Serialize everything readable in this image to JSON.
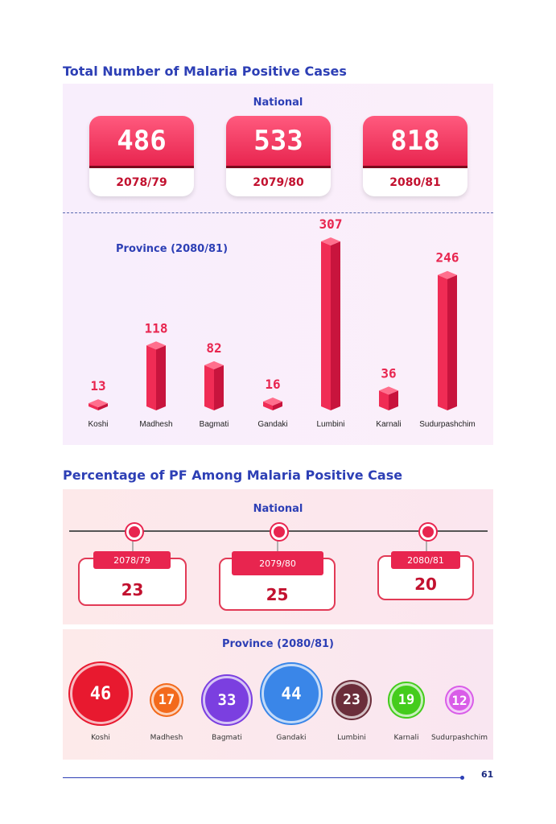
{
  "section1": {
    "title": "Total Number of Malaria Positive Cases",
    "national_label": "National",
    "national": [
      {
        "value": "486",
        "year": "2078/79"
      },
      {
        "value": "533",
        "year": "2079/80"
      },
      {
        "value": "818",
        "year": "2080/81"
      }
    ],
    "province_title": "Province (2080/81)"
  },
  "section2": {
    "title": "Percentage of PF Among Malaria Positive Case",
    "national_label": "National",
    "national": [
      {
        "value": "23",
        "year": "2078/79"
      },
      {
        "value": "25",
        "year": "2079/80"
      },
      {
        "value": "20",
        "year": "2080/81"
      }
    ],
    "province_title": "Province (2080/81)"
  },
  "colors": {
    "title_blue": "#2d3fb5",
    "accent_red": "#e8254f"
  },
  "chart_data": [
    {
      "type": "bar",
      "title": "Province (2080/81)",
      "categories": [
        "Koshi",
        "Madhesh",
        "Bagmati",
        "Gandaki",
        "Lumbini",
        "Karnali",
        "Sudurpashchim"
      ],
      "values": [
        13,
        118,
        82,
        16,
        307,
        36,
        246
      ],
      "ylim": [
        0,
        307
      ]
    },
    {
      "type": "scatter",
      "title": "Province (2080/81)",
      "categories": [
        "Koshi",
        "Madhesh",
        "Bagmati",
        "Gandaki",
        "Lumbini",
        "Karnali",
        "Sudurpashchim"
      ],
      "values": [
        46,
        17,
        33,
        44,
        23,
        19,
        12
      ],
      "colors": [
        "#e8192f",
        "#f36a1c",
        "#7b3fe0",
        "#3a86e8",
        "#6b2d3a",
        "#44cc1c",
        "#d95ce8"
      ]
    }
  ],
  "footer": {
    "page_number": "61"
  }
}
